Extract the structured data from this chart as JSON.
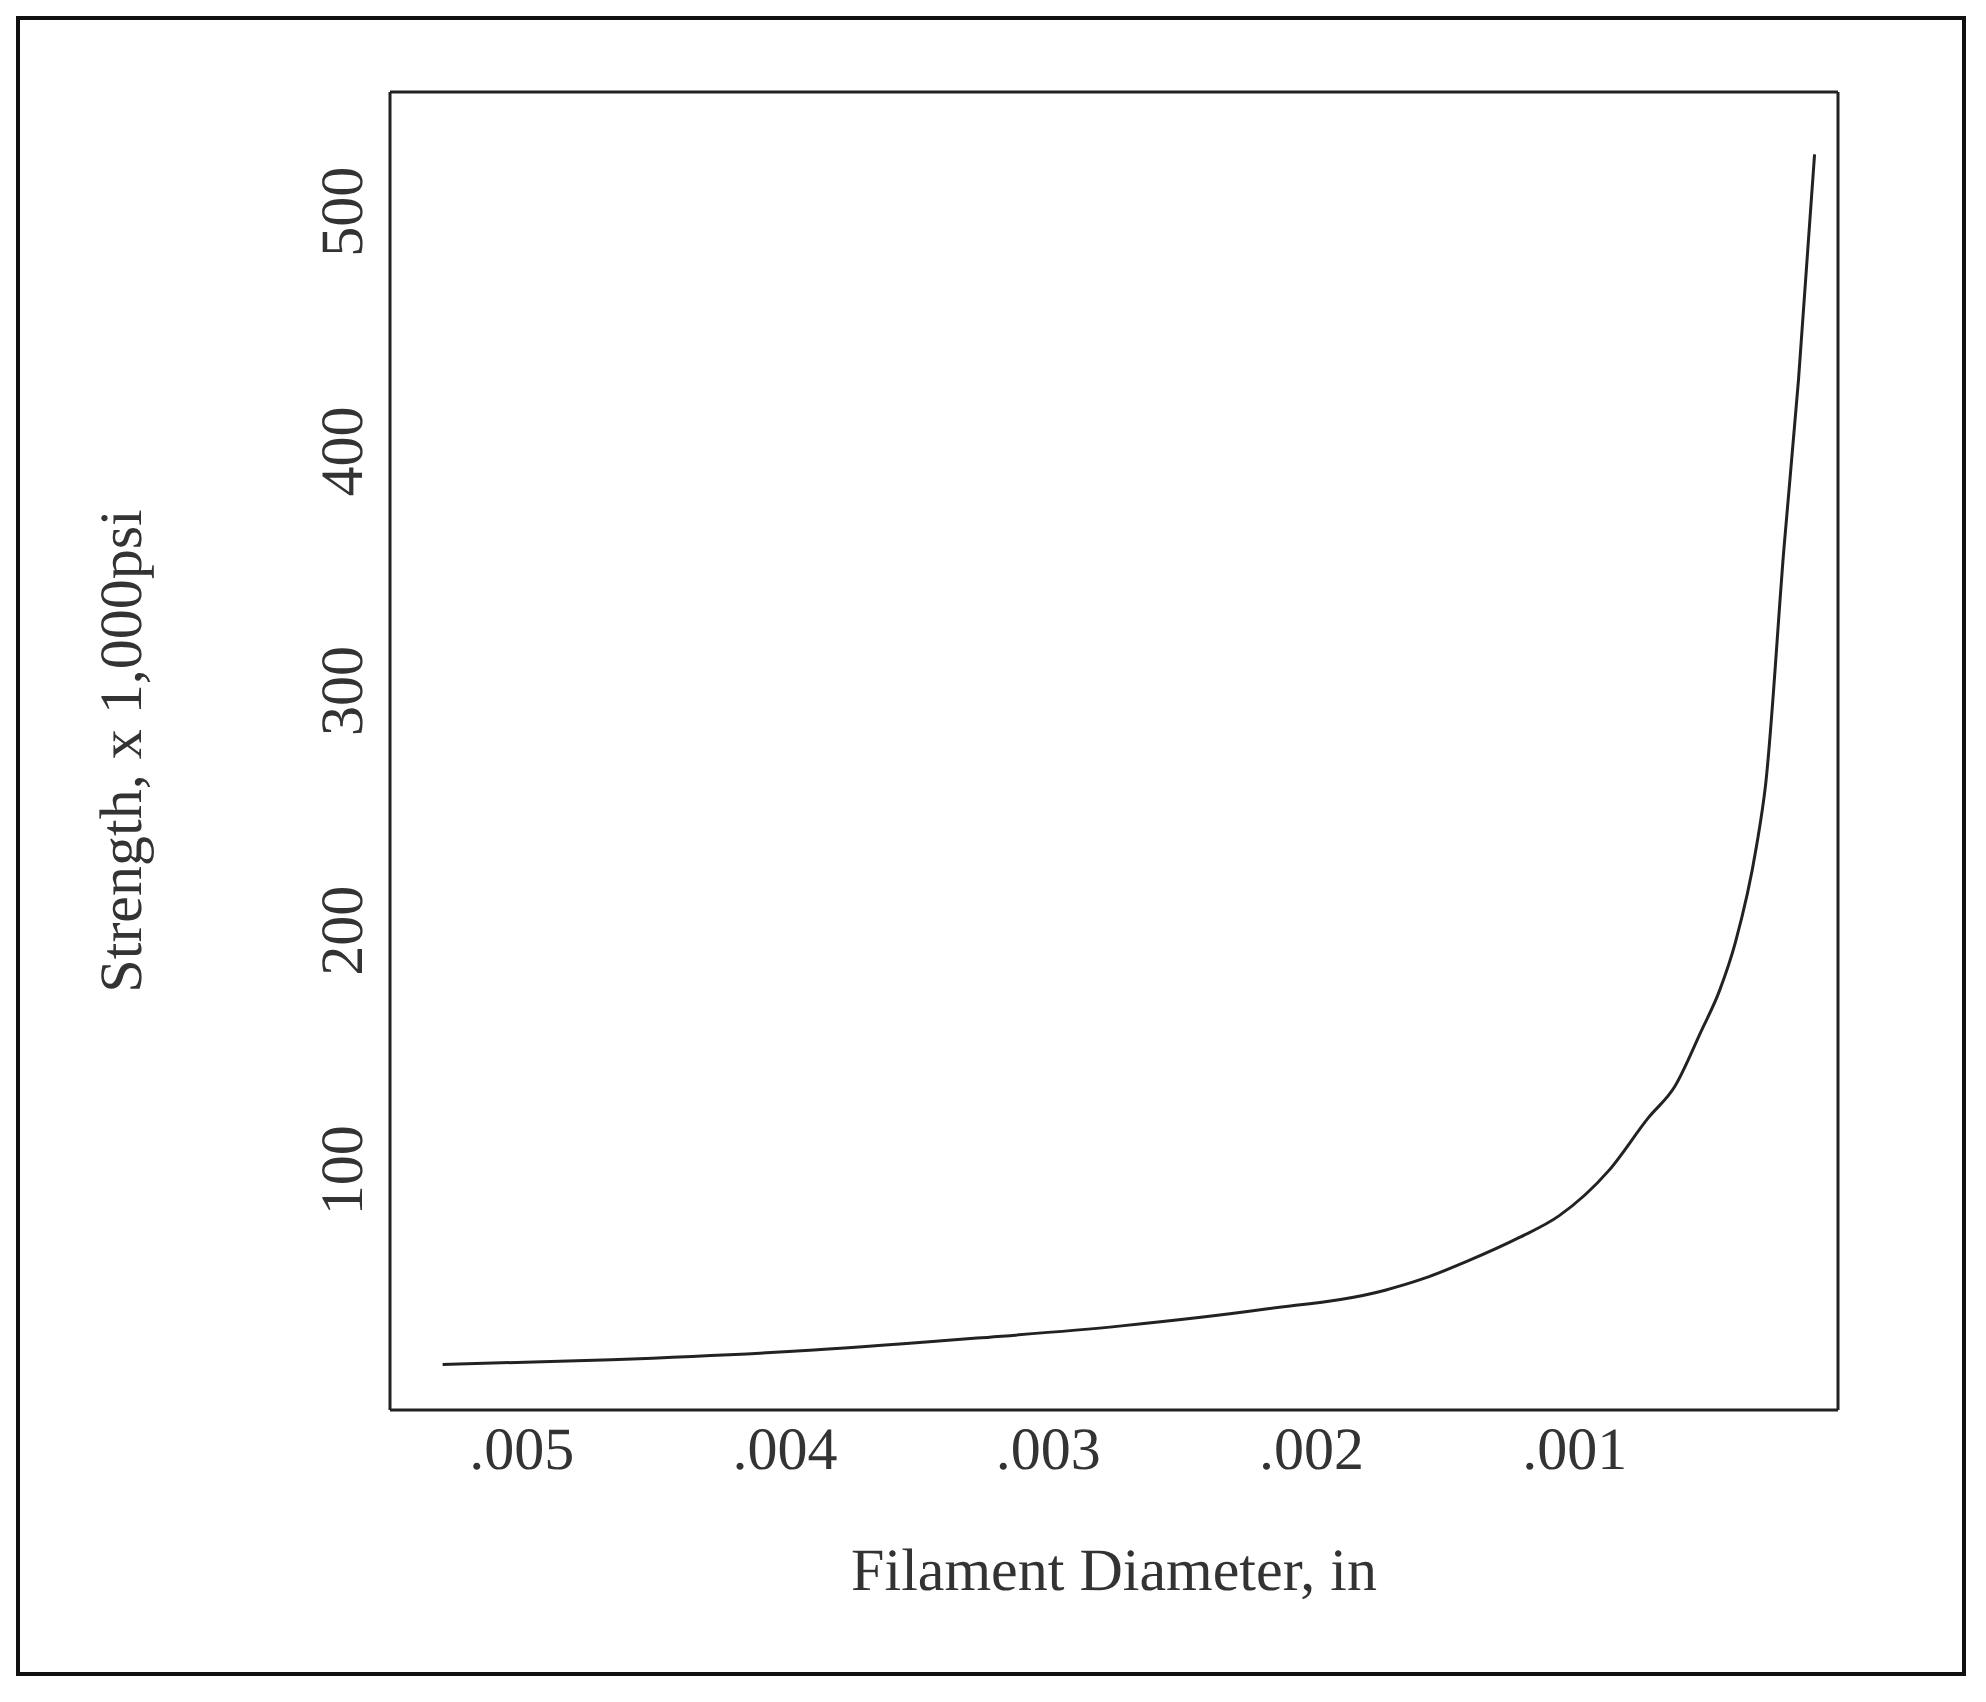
{
  "chart_data": {
    "type": "line",
    "xlabel": "Filament Diameter, in",
    "ylabel": "Strength, x 1,000psi",
    "x": [
      0.0053,
      0.00466,
      0.00389,
      0.00327,
      0.00273,
      0.00218,
      0.00172,
      0.00157,
      0.00141,
      0.00121,
      0.00106,
      0.00087,
      0.00072,
      0.00062,
      0.00052,
      0.00045,
      0.00039,
      0.00031,
      0.000275,
      0.000205,
      0.00015,
      8.9e-05
    ],
    "series": [
      {
        "color": "#222222",
        "values": [
          19,
          21,
          25,
          30,
          35,
          42,
          50,
          55,
          62,
          72,
          81,
          100,
          122,
          135,
          158,
          175,
          195,
          235,
          261,
          360,
          430,
          524
        ]
      }
    ],
    "xlim": [
      0.0055,
      0
    ],
    "xticks": [
      {
        "value": 0.005,
        "label": ".005"
      },
      {
        "value": 0.004,
        "label": ".004"
      },
      {
        "value": 0.003,
        "label": ".003"
      },
      {
        "value": 0.002,
        "label": ".002"
      },
      {
        "value": 0.001,
        "label": ".001"
      }
    ],
    "ylim": [
      0,
      550
    ],
    "yticks": [
      100,
      200,
      300,
      400,
      500
    ],
    "marker": "none",
    "line_style": "solid"
  }
}
